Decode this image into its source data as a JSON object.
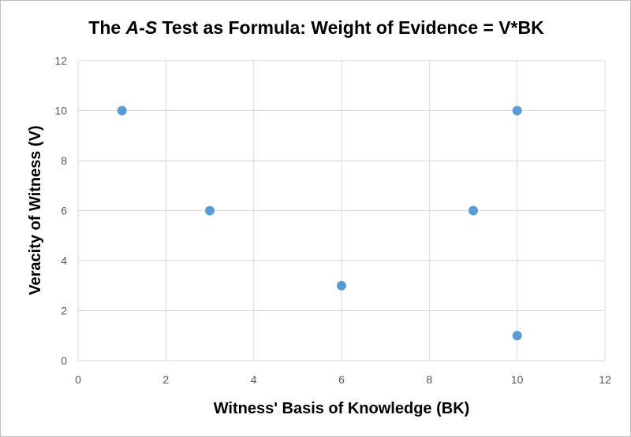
{
  "chart_data": {
    "type": "scatter",
    "title": {
      "prefix": "The ",
      "italic": "A-S",
      "suffix": " Test as Formula: Weight of Evidence = V*BK"
    },
    "xlabel": "Witness' Basis of Knowledge (BK)",
    "ylabel": "Veracity of Witness (V)",
    "xlim": [
      0,
      12
    ],
    "ylim": [
      0,
      12
    ],
    "x_ticks": [
      0,
      2,
      4,
      6,
      8,
      10,
      12
    ],
    "y_ticks": [
      0,
      2,
      4,
      6,
      8,
      10,
      12
    ],
    "grid": true,
    "series": [
      {
        "color": "#5b9bd5",
        "points": [
          {
            "x": 1,
            "y": 10
          },
          {
            "x": 3,
            "y": 6
          },
          {
            "x": 6,
            "y": 3
          },
          {
            "x": 9,
            "y": 6
          },
          {
            "x": 10,
            "y": 10
          },
          {
            "x": 10,
            "y": 1
          }
        ]
      }
    ]
  }
}
